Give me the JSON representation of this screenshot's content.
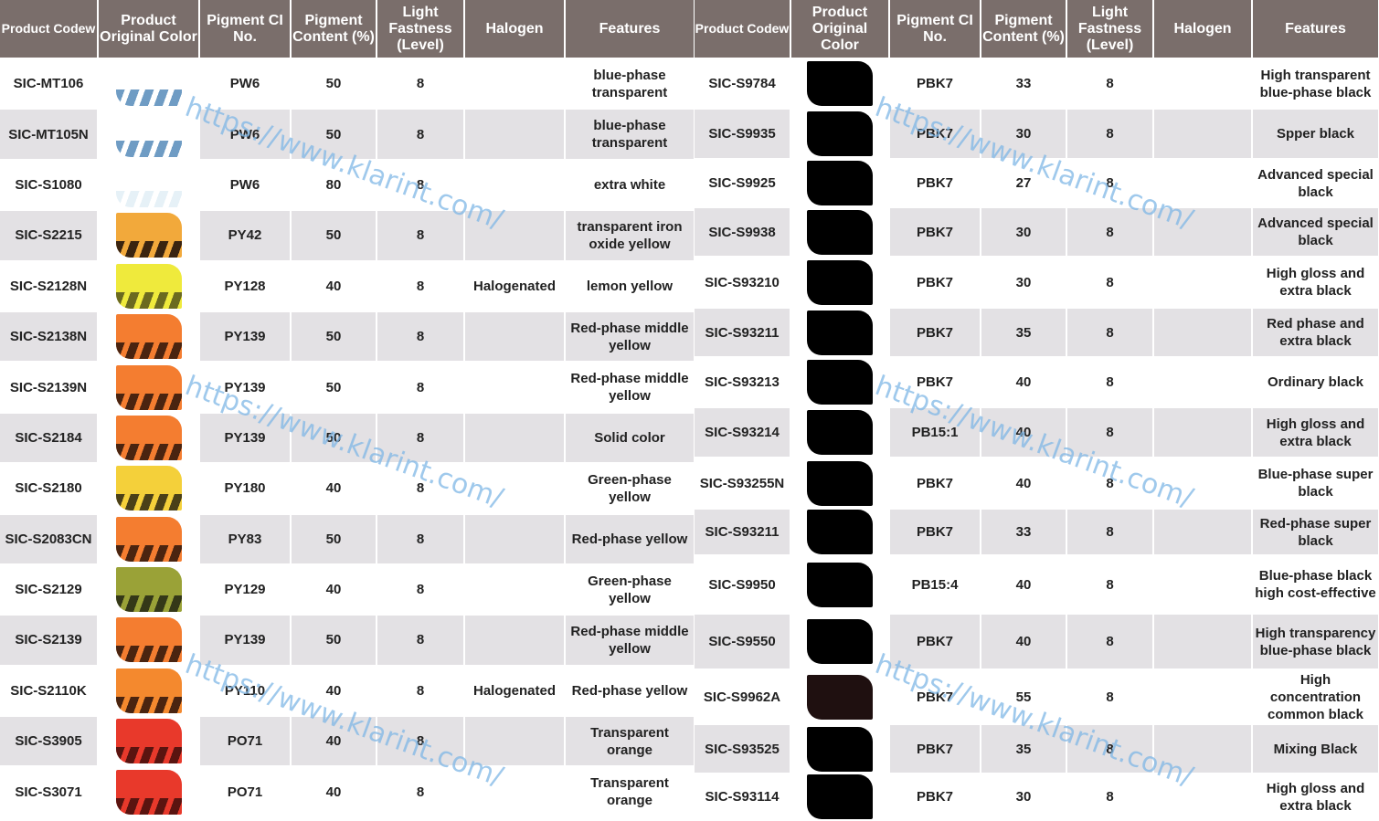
{
  "headers": [
    "Product Codew",
    "Product Original Color",
    "Pigment CI No.",
    "Pigment Content (%)",
    "Light Fastness (Level)",
    "Halogen",
    "Features"
  ],
  "watermark": "https://www.klarint.com/",
  "left_rows": [
    {
      "code": "SIC-MT106",
      "color": "#ffffff",
      "stripe": "#6f9cc4",
      "ci": "PW6",
      "content": "50",
      "light": "8",
      "halogen": "",
      "features": "blue-phase transparent"
    },
    {
      "code": "SIC-MT105N",
      "color": "#ffffff",
      "stripe": "#6f9cc4",
      "ci": "PW6",
      "content": "50",
      "light": "8",
      "halogen": "",
      "features": "blue-phase transparent"
    },
    {
      "code": "SIC-S1080",
      "color": "#ffffff",
      "stripe": "#e6f1f7",
      "ci": "PW6",
      "content": "80",
      "light": "8",
      "halogen": "",
      "features": "extra white"
    },
    {
      "code": "SIC-S2215",
      "color": "#f2a93b",
      "stripe": "#3a2410",
      "ci": "PY42",
      "content": "50",
      "light": "8",
      "halogen": "",
      "features": "transparent iron oxide yellow"
    },
    {
      "code": "SIC-S2128N",
      "color": "#efea3c",
      "stripe": "#6b6a20",
      "ci": "PY128",
      "content": "40",
      "light": "8",
      "halogen": "Halogenated",
      "features": "lemon yellow"
    },
    {
      "code": "SIC-S2138N",
      "color": "#f47d30",
      "stripe": "#4a2410",
      "ci": "PY139",
      "content": "50",
      "light": "8",
      "halogen": "",
      "features": "Red-phase middle yellow"
    },
    {
      "code": "SIC-S2139N",
      "color": "#f47d30",
      "stripe": "#4a2410",
      "ci": "PY139",
      "content": "50",
      "light": "8",
      "halogen": "",
      "features": "Red-phase middle yellow"
    },
    {
      "code": "SIC-S2184",
      "color": "#f47d30",
      "stripe": "#4a2410",
      "ci": "PY139",
      "content": "50",
      "light": "8",
      "halogen": "",
      "features": "Solid color"
    },
    {
      "code": "SIC-S2180",
      "color": "#f4d03a",
      "stripe": "#4a4018",
      "ci": "PY180",
      "content": "40",
      "light": "8",
      "halogen": "",
      "features": "Green-phase yellow"
    },
    {
      "code": "SIC-S2083CN",
      "color": "#f47d30",
      "stripe": "#4a2410",
      "ci": "PY83",
      "content": "50",
      "light": "8",
      "halogen": "",
      "features": "Red-phase yellow"
    },
    {
      "code": "SIC-S2129",
      "color": "#9aa237",
      "stripe": "#343818",
      "ci": "PY129",
      "content": "40",
      "light": "8",
      "halogen": "",
      "features": "Green-phase yellow"
    },
    {
      "code": "SIC-S2139",
      "color": "#f47d30",
      "stripe": "#4a2410",
      "ci": "PY139",
      "content": "50",
      "light": "8",
      "halogen": "",
      "features": "Red-phase middle yellow"
    },
    {
      "code": "SIC-S2110K",
      "color": "#f4892e",
      "stripe": "#4a2410",
      "ci": "PY110",
      "content": "40",
      "light": "8",
      "halogen": "Halogenated",
      "features": "Red-phase yellow"
    },
    {
      "code": "SIC-S3905",
      "color": "#e8392b",
      "stripe": "#5a1410",
      "ci": "PO71",
      "content": "40",
      "light": "8",
      "halogen": "",
      "features": "Transparent orange"
    },
    {
      "code": "SIC-S3071",
      "color": "#e8392b",
      "stripe": "#5a1410",
      "ci": "PO71",
      "content": "40",
      "light": "8",
      "halogen": "",
      "features": "Transparent orange"
    }
  ],
  "right_rows": [
    {
      "code": "SIC-S9784",
      "color": "#000000",
      "ci": "PBK7",
      "content": "33",
      "light": "8",
      "halogen": "",
      "features": "High transparent blue-phase black"
    },
    {
      "code": "SIC-S9935",
      "color": "#000000",
      "ci": "PBK7",
      "content": "30",
      "light": "8",
      "halogen": "",
      "features": "Spper black"
    },
    {
      "code": "SIC-S9925",
      "color": "#000000",
      "ci": "PBK7",
      "content": "27",
      "light": "8",
      "halogen": "",
      "features": "Advanced special black"
    },
    {
      "code": "SIC-S9938",
      "color": "#000000",
      "ci": "PBK7",
      "content": "30",
      "light": "8",
      "halogen": "",
      "features": "Advanced special black"
    },
    {
      "code": "SIC-S93210",
      "color": "#000000",
      "ci": "PBK7",
      "content": "30",
      "light": "8",
      "halogen": "",
      "features": "High gloss and extra black"
    },
    {
      "code": "SIC-S93211",
      "color": "#000000",
      "ci": "PBK7",
      "content": "35",
      "light": "8",
      "halogen": "",
      "features": "Red phase and extra black"
    },
    {
      "code": "SIC-S93213",
      "color": "#000000",
      "ci": "PBK7",
      "content": "40",
      "light": "8",
      "halogen": "",
      "features": "Ordinary black"
    },
    {
      "code": "SIC-S93214",
      "color": "#000000",
      "ci": "PB15:1",
      "content": "40",
      "light": "8",
      "halogen": "",
      "features": "High gloss and extra black"
    },
    {
      "code": "SIC-S93255N",
      "color": "#000000",
      "ci": "PBK7",
      "content": "40",
      "light": "8",
      "halogen": "",
      "features": "Blue-phase super black"
    },
    {
      "code": "SIC-S93211",
      "color": "#000000",
      "ci": "PBK7",
      "content": "33",
      "light": "8",
      "halogen": "",
      "features": "Red-phase super black"
    },
    {
      "code": "SIC-S9950",
      "color": "#000000",
      "ci": "PB15:4",
      "content": "40",
      "light": "8",
      "halogen": "",
      "features": "Blue-phase black high cost-effective"
    },
    {
      "code": "SIC-S9550",
      "color": "#000000",
      "ci": "PBK7",
      "content": "40",
      "light": "8",
      "halogen": "",
      "features": "High transparency blue-phase black"
    },
    {
      "code": "SIC-S9962A",
      "color": "#1f1010",
      "ci": "PBK7",
      "content": "55",
      "light": "8",
      "halogen": "",
      "features": "High concentration common black"
    },
    {
      "code": "SIC-S93525",
      "color": "#000000",
      "ci": "PBK7",
      "content": "35",
      "light": "8",
      "halogen": "",
      "features": "Mixing Black"
    },
    {
      "code": "SIC-S93114",
      "color": "#000000",
      "ci": "PBK7",
      "content": "30",
      "light": "8",
      "halogen": "",
      "features": "High gloss and extra black"
    }
  ]
}
